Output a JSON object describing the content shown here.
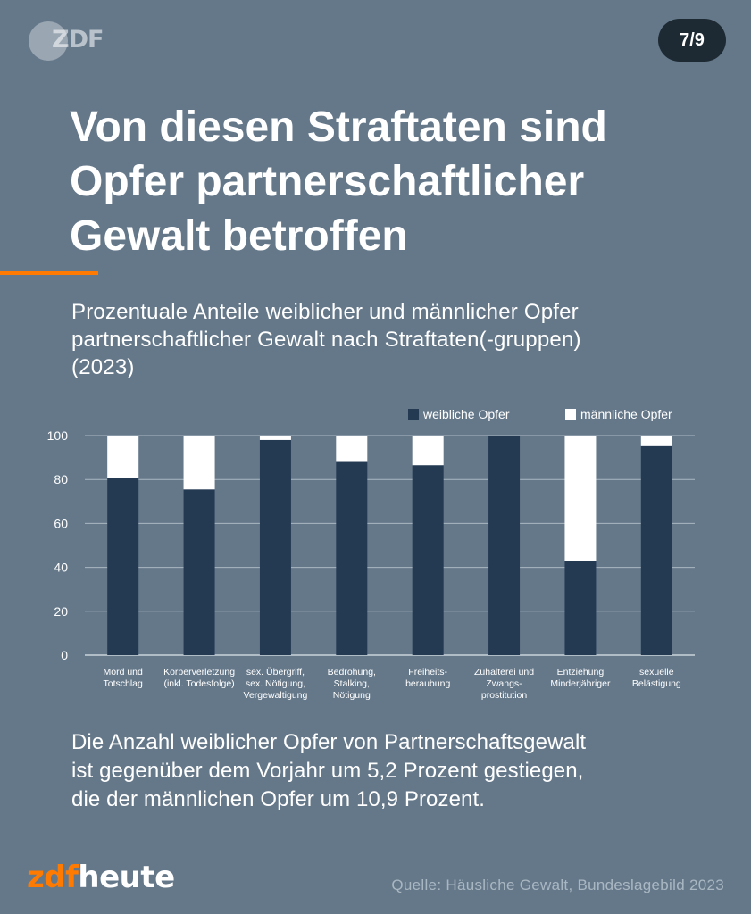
{
  "header": {
    "logo_text": "ZDF",
    "page_indicator": "7/9"
  },
  "title_lines": [
    "Von diesen Straftaten sind",
    "Opfer partnerschaftlicher",
    "Gewalt betroffen"
  ],
  "subtitle_lines": [
    "Prozentuale Anteile weiblicher und männlicher Opfer",
    "partnerschaftlicher Gewalt nach Straftaten(-gruppen)",
    "(2023)"
  ],
  "body_lines": [
    "Die Anzahl weiblicher Opfer von Partnerschaftsgewalt",
    "ist gegenüber dem Vorjahr um 5,2 Prozent gestiegen,",
    "die der männlichen Opfer um 10,9 Prozent."
  ],
  "footer": {
    "brand_zdf": "zdf",
    "brand_heute": "heute",
    "source": "Quelle: Häusliche Gewalt, Bundeslagebild 2023"
  },
  "colors": {
    "background": "#65788a",
    "accent": "#ff7a00",
    "female": "#243a52",
    "male": "#ffffff",
    "badge": "#1e2a33"
  },
  "chart_data": {
    "type": "bar",
    "stacked": true,
    "title": "",
    "xlabel": "",
    "ylabel": "",
    "ylim": [
      0,
      100
    ],
    "yticks": [
      0,
      20,
      40,
      60,
      80,
      100
    ],
    "grid": true,
    "legend_position": "top-right",
    "categories": [
      [
        "Mord und",
        "Totschlag"
      ],
      [
        "Körperverletzung",
        "(inkl. Todesfolge)"
      ],
      [
        "sex. Übergriff,",
        "sex. Nötigung,",
        "Vergewaltigung"
      ],
      [
        "Bedrohung,",
        "Stalking,",
        "Nötigung"
      ],
      [
        "Freiheits-",
        "beraubung"
      ],
      [
        "Zuhälterei und",
        "Zwangs-",
        "prostitution"
      ],
      [
        "Entziehung",
        "Minderjähriger"
      ],
      [
        "sexuelle",
        "Belästigung"
      ]
    ],
    "series": [
      {
        "name": "weibliche Opfer",
        "color": "#243a52",
        "values": [
          80.5,
          75.5,
          98,
          88,
          86.5,
          99.8,
          43,
          95.2
        ]
      },
      {
        "name": "männliche Opfer",
        "color": "#ffffff",
        "values": [
          19.5,
          24.5,
          2,
          12,
          13.5,
          0.2,
          57,
          4.8
        ]
      }
    ]
  }
}
